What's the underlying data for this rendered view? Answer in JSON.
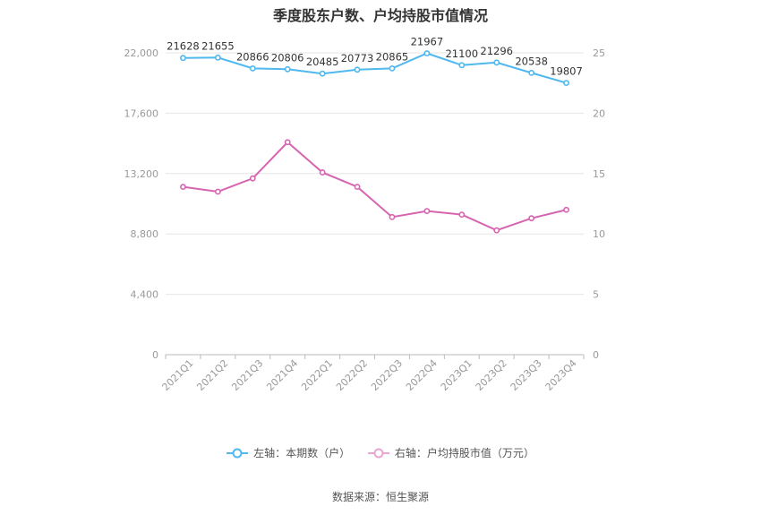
{
  "title": "季度股东户数、户均持股市值情况",
  "source": "数据来源：恒生聚源",
  "legend": {
    "left": "左轴：本期数（户）",
    "right": "右轴：户均持股市值（万元）"
  },
  "colors": {
    "left_series": "#4fb8ee",
    "right_series": "#d764b0",
    "grid": "#e6e6e6",
    "axis_text": "#999999"
  },
  "chart_data": {
    "type": "line",
    "title": "季度股东户数、户均持股市值情况",
    "categories": [
      "2021Q1",
      "2021Q2",
      "2021Q3",
      "2021Q4",
      "2022Q1",
      "2022Q2",
      "2022Q3",
      "2022Q4",
      "2023Q1",
      "2023Q2",
      "2023Q3",
      "2023Q4"
    ],
    "y_left": {
      "ylim": [
        0,
        22000
      ],
      "ticks": [
        0,
        4400,
        8800,
        13200,
        17600,
        22000
      ],
      "tick_labels": [
        "0",
        "4,400",
        "8,800",
        "13,200",
        "17,600",
        "22,000"
      ]
    },
    "y_right": {
      "ylim": [
        0,
        25
      ],
      "ticks": [
        0,
        5,
        10,
        15,
        20,
        25
      ],
      "tick_labels": [
        "0",
        "5",
        "10",
        "15",
        "20",
        "25"
      ]
    },
    "grid": true,
    "legend_position": "bottom",
    "series": [
      {
        "name": "左轴：本期数（户）",
        "axis": "left",
        "values": [
          21628,
          21655,
          20866,
          20806,
          20485,
          20773,
          20865,
          21967,
          21100,
          21296,
          20538,
          19807
        ],
        "labels": [
          "21628",
          "21655",
          "20866",
          "20806",
          "20485",
          "20773",
          "20865",
          "21967",
          "21100",
          "21296",
          "20538",
          "19807"
        ]
      },
      {
        "name": "右轴：户均持股市值（万元）",
        "axis": "right",
        "values": [
          13.9,
          13.5,
          14.6,
          17.6,
          15.1,
          13.9,
          11.4,
          11.9,
          11.6,
          10.3,
          11.3,
          12.0
        ]
      }
    ]
  }
}
